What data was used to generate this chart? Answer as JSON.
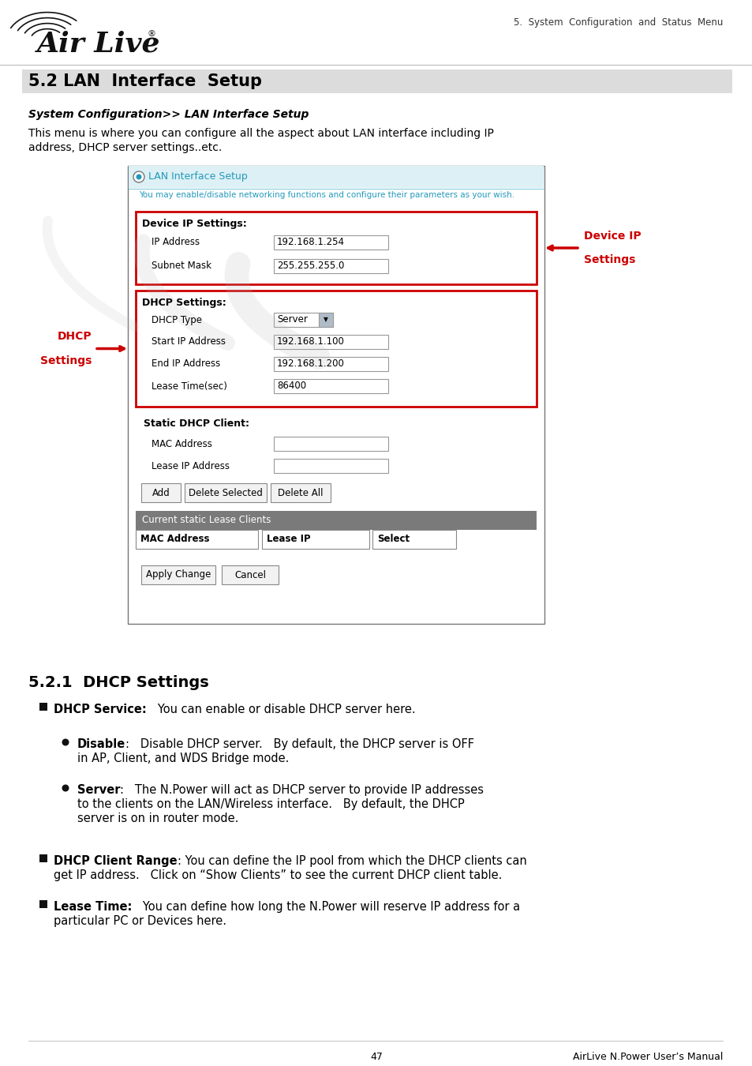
{
  "page_title": "5.  System  Configuration  and  Status  Menu",
  "section_title": "5.2 LAN  Interface  Setup",
  "subsection_italic": "System Configuration>> LAN Interface Setup",
  "intro_line1": "This menu is where you can configure all the aspect about LAN interface including IP",
  "intro_line2": "address, DHCP server settings..etc.",
  "ui_panel_title": "LAN Interface Setup",
  "ui_panel_subtitle": "You may enable/disable networking functions and configure their parameters as your wish.",
  "device_ip_label": "Device IP Settings:",
  "device_ip_fields": [
    {
      "label": "IP Address",
      "value": "192.168.1.254"
    },
    {
      "label": "Subnet Mask",
      "value": "255.255.255.0"
    }
  ],
  "dhcp_label": "DHCP Settings:",
  "dhcp_fields": [
    {
      "label": "DHCP Type",
      "value": "Server",
      "dropdown": true
    },
    {
      "label": "Start IP Address",
      "value": "192.168.1.100"
    },
    {
      "label": "End IP Address",
      "value": "192.168.1.200"
    },
    {
      "label": "Lease Time(sec)",
      "value": "86400"
    }
  ],
  "static_dhcp_label": "Static DHCP Client:",
  "static_dhcp_fields": [
    {
      "label": "MAC Address",
      "value": ""
    },
    {
      "label": "Lease IP Address",
      "value": ""
    }
  ],
  "buttons_row1": [
    "Add",
    "Delete Selected",
    "Delete All"
  ],
  "current_lease_header": "Current static Lease Clients",
  "table_headers": [
    "MAC Address",
    "Lease IP",
    "Select"
  ],
  "buttons_row2": [
    "Apply Change",
    "Cancel"
  ],
  "annotation_device_line1": "Device IP",
  "annotation_device_line2": "Settings",
  "annotation_dhcp_line1": "DHCP",
  "annotation_dhcp_line2": "Settings",
  "section_521": "5.2.1  DHCP Settings",
  "page_number": "47",
  "footer_right": "AirLive N.Power User’s Manual",
  "bg_color": "#ffffff",
  "section_bar_color": "#dcdcdc",
  "red_box_color": "#cc0000",
  "red_arrow_color": "#cc0000",
  "cyan_text_color": "#2299bb",
  "gray_header_color": "#7a7a7a"
}
